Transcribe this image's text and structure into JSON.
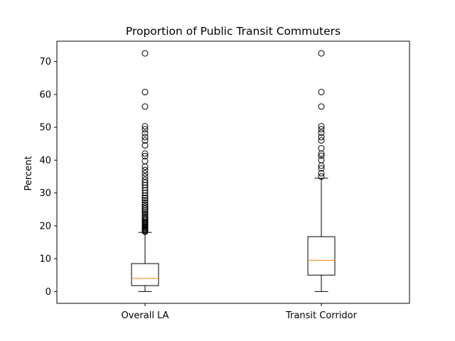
{
  "chart_data": {
    "type": "boxplot",
    "title": "Proportion of Public Transit Commuters",
    "xlabel": "",
    "ylabel": "Percent",
    "ylim": [
      -3.6,
      76.2
    ],
    "yticks": [
      0,
      10,
      20,
      30,
      40,
      50,
      60,
      70
    ],
    "grid": false,
    "colors": {
      "box": "#000000",
      "median": "#ff7f0e",
      "outlier": "#000000"
    },
    "categories": [
      "Overall LA",
      "Transit Corridor"
    ],
    "boxes": [
      {
        "name": "Overall LA",
        "whisker_low": 0,
        "q1": 1.8,
        "median": 4.0,
        "q3": 8.5,
        "whisker_high": 18.0,
        "outliers": [
          18.2,
          18.5,
          18.8,
          19.1,
          19.4,
          19.7,
          20.0,
          20.3,
          20.6,
          20.9,
          21.2,
          21.6,
          22.0,
          22.4,
          22.8,
          23.3,
          23.8,
          24.3,
          24.8,
          25.3,
          25.9,
          26.5,
          27.1,
          27.8,
          28.5,
          29.2,
          30.0,
          30.8,
          31.6,
          32.4,
          33.2,
          34.0,
          35.0,
          36.0,
          37.0,
          38.0,
          39.7,
          41.2,
          42.0,
          44.5,
          46.0,
          47.0,
          48.2,
          49.4,
          50.3,
          56.3,
          60.7,
          72.5
        ]
      },
      {
        "name": "Transit Corridor",
        "whisker_low": 0,
        "q1": 5.0,
        "median": 9.5,
        "q3": 16.7,
        "whisker_high": 34.5,
        "outliers": [
          35.0,
          36.0,
          37.5,
          38.3,
          40.0,
          41.3,
          42.0,
          43.6,
          46.0,
          47.0,
          48.3,
          49.4,
          50.3,
          56.3,
          60.7,
          72.5
        ]
      }
    ]
  }
}
